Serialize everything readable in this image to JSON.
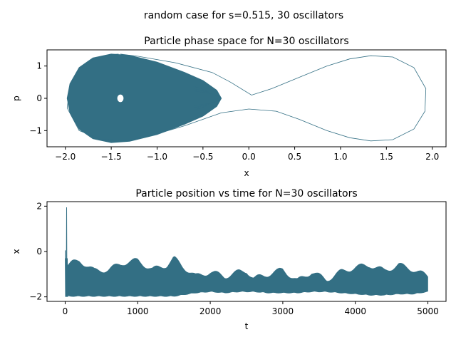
{
  "suptitle": "random case for s=0.515, 30 oscillators",
  "color": "#336f84",
  "chart_data": [
    {
      "type": "line",
      "title": "Particle phase space for N=30 oscillators",
      "xlabel": "x",
      "ylabel": "p",
      "xlim": [
        -2.2,
        2.15
      ],
      "ylim": [
        -1.5,
        1.5
      ],
      "xticks": [
        -2.0,
        -1.5,
        -1.0,
        -0.5,
        0.0,
        0.5,
        1.0,
        1.5,
        2.0
      ],
      "xtick_labels": [
        "−2.0",
        "−1.5",
        "−1.0",
        "−0.5",
        "0.0",
        "0.5",
        "1.0",
        "1.5",
        "2.0"
      ],
      "yticks": [
        -1,
        0,
        1
      ],
      "ytick_labels": [
        "−1",
        "0",
        "1"
      ],
      "grid": false,
      "series": [
        {
          "description_free": true,
          "x": [
            -1.42,
            -1.38,
            -1.4,
            -1.2,
            -0.8,
            -0.4,
            -0.2,
            0.03,
            0.25,
            0.55,
            0.85,
            1.1,
            1.33,
            1.57,
            1.8,
            1.93,
            1.92,
            1.8,
            1.57,
            1.33,
            1.1,
            0.85,
            0.55,
            0.3,
            0.0,
            -0.3,
            -0.7,
            -1.0,
            -1.3,
            -1.6,
            -1.85,
            -1.98,
            -1.95,
            -1.85,
            -1.7,
            -1.5,
            -1.42
          ],
          "y": [
            0.0,
            0.0,
            1.37,
            1.3,
            1.1,
            0.8,
            0.5,
            0.1,
            0.3,
            0.65,
            1.0,
            1.22,
            1.32,
            1.28,
            0.95,
            0.3,
            -0.4,
            -0.95,
            -1.28,
            -1.32,
            -1.22,
            -1.0,
            -0.65,
            -0.4,
            -0.33,
            -0.45,
            -0.85,
            -1.1,
            -1.3,
            -1.28,
            -1.0,
            -0.3,
            0.4,
            0.9,
            1.2,
            1.35,
            1.37
          ]
        }
      ]
    },
    {
      "type": "line",
      "title": "Particle position vs time for N=30 oscillators",
      "xlabel": "t",
      "ylabel": "x",
      "xlim": [
        -250,
        5250
      ],
      "ylim": [
        -2.2,
        2.2
      ],
      "xticks": [
        0,
        1000,
        2000,
        3000,
        4000,
        5000
      ],
      "xtick_labels": [
        "0",
        "1000",
        "2000",
        "3000",
        "4000",
        "5000"
      ],
      "yticks": [
        -2,
        0,
        2
      ],
      "ytick_labels": [
        "−2",
        "0",
        "2"
      ],
      "grid": false,
      "series": [
        {
          "t": [
            0,
            10,
            20,
            30,
            40,
            100,
            200,
            400,
            600,
            800,
            1000,
            1200,
            1400,
            1500,
            1600,
            1800,
            2000,
            2200,
            2400,
            2500,
            2600,
            2800,
            3000,
            3200,
            3400,
            3600,
            3800,
            4000,
            4200,
            4400,
            4600,
            4800,
            5000
          ],
          "upper": [
            0.05,
            -0.3,
            1.95,
            -0.3,
            -0.6,
            -0.5,
            -0.4,
            -0.85,
            -0.8,
            -0.5,
            -0.4,
            -0.8,
            -0.6,
            -0.3,
            -0.6,
            -1.1,
            -0.9,
            -1.1,
            -0.9,
            -0.85,
            -1.2,
            -1.0,
            -0.8,
            -1.3,
            -0.9,
            -1.25,
            -0.9,
            -0.7,
            -0.6,
            -0.85,
            -0.6,
            -0.8,
            -1.1
          ],
          "lower": [
            -2.0,
            -2.0,
            -2.0,
            -2.0,
            -1.95,
            -1.95,
            -1.95,
            -1.95,
            -1.95,
            -1.95,
            -1.95,
            -1.95,
            -1.95,
            -1.95,
            -1.9,
            -1.8,
            -1.75,
            -1.8,
            -1.75,
            -1.75,
            -1.75,
            -1.8,
            -1.8,
            -1.8,
            -1.75,
            -1.75,
            -1.8,
            -1.85,
            -1.9,
            -1.9,
            -1.85,
            -1.85,
            -1.75
          ]
        }
      ]
    }
  ]
}
